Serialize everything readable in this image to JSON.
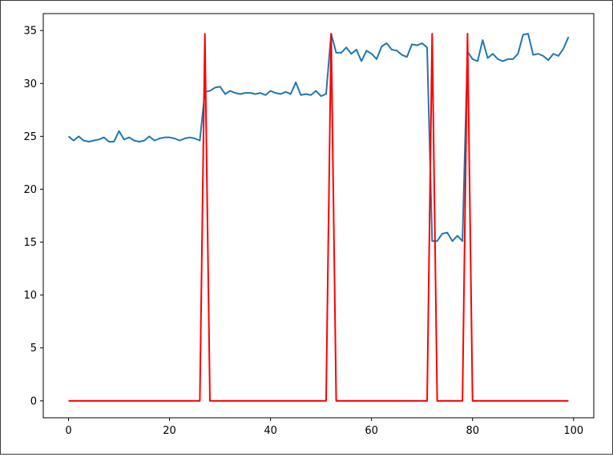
{
  "chart_data": {
    "type": "line",
    "title": "",
    "xlabel": "",
    "ylabel": "",
    "xlim": [
      -5,
      104
    ],
    "ylim": [
      -1.6,
      36.6
    ],
    "xticks": [
      0,
      20,
      40,
      60,
      80,
      100
    ],
    "yticks": [
      0,
      5,
      10,
      15,
      20,
      25,
      30,
      35
    ],
    "xtick_labels": [
      "0",
      "20",
      "40",
      "60",
      "80",
      "100"
    ],
    "ytick_labels": [
      "0",
      "5",
      "10",
      "15",
      "20",
      "25",
      "30",
      "35"
    ],
    "grid": false,
    "legend": "none",
    "series": [
      {
        "color": "#1f77b4",
        "x": [
          0,
          1,
          2,
          3,
          4,
          5,
          6,
          7,
          8,
          9,
          10,
          11,
          12,
          13,
          14,
          15,
          16,
          17,
          18,
          19,
          20,
          21,
          22,
          23,
          24,
          25,
          26,
          27,
          28,
          29,
          30,
          31,
          32,
          33,
          34,
          35,
          36,
          37,
          38,
          39,
          40,
          41,
          42,
          43,
          44,
          45,
          46,
          47,
          48,
          49,
          50,
          51,
          52,
          53,
          54,
          55,
          56,
          57,
          58,
          59,
          60,
          61,
          62,
          63,
          64,
          65,
          66,
          67,
          68,
          69,
          70,
          71,
          72,
          73,
          74,
          75,
          76,
          77,
          78,
          79,
          80,
          81,
          82,
          83,
          84,
          85,
          86,
          87,
          88,
          89,
          90,
          91,
          92,
          93,
          94,
          95,
          96,
          97,
          98,
          99
        ],
        "y": [
          25.0,
          24.6,
          25.0,
          24.6,
          24.5,
          24.6,
          24.7,
          24.9,
          24.5,
          24.5,
          25.5,
          24.7,
          24.9,
          24.6,
          24.5,
          24.6,
          25.0,
          24.6,
          24.8,
          24.9,
          24.9,
          24.8,
          24.6,
          24.8,
          24.9,
          24.8,
          24.6,
          29.2,
          29.3,
          29.6,
          29.7,
          29.0,
          29.3,
          29.1,
          29.0,
          29.1,
          29.1,
          29.0,
          29.1,
          28.9,
          29.3,
          29.1,
          29.0,
          29.2,
          29.0,
          30.1,
          28.9,
          29.0,
          28.9,
          29.3,
          28.8,
          29.0,
          34.7,
          32.9,
          32.9,
          33.4,
          32.8,
          33.2,
          32.1,
          33.1,
          32.8,
          32.3,
          33.5,
          33.8,
          33.2,
          33.1,
          32.7,
          32.5,
          33.7,
          33.6,
          33.8,
          33.4,
          15.1,
          15.1,
          15.8,
          15.9,
          15.1,
          15.6,
          15.1,
          33.0,
          32.3,
          32.1,
          34.1,
          32.4,
          32.8,
          32.3,
          32.1,
          32.3,
          32.3,
          32.8,
          34.6,
          34.7,
          32.7,
          32.8,
          32.6,
          32.2,
          32.8,
          32.6,
          33.3,
          34.4
        ]
      },
      {
        "color": "#ff0000",
        "x": [
          0,
          26,
          27,
          28,
          51,
          52,
          53,
          71,
          72,
          73,
          78,
          79,
          80,
          99
        ],
        "y": [
          0,
          0,
          34.7,
          0,
          0,
          34.7,
          0,
          0,
          34.7,
          0,
          0,
          34.7,
          0,
          0
        ]
      }
    ]
  }
}
